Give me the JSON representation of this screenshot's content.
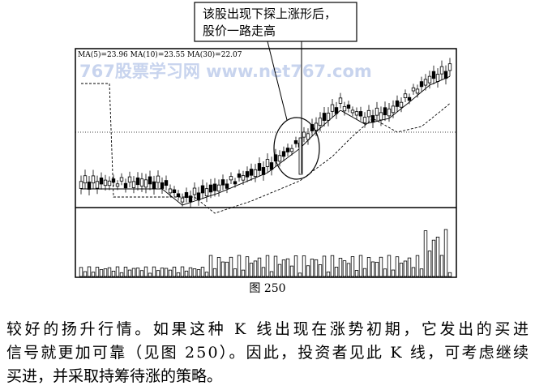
{
  "callout": {
    "lines": [
      "该股出现下探上涨形后，",
      "股价一路走高"
    ]
  },
  "chart": {
    "indicator_legend": "MA(5)=23.96  MA(10)=23.55  MA(30)=22.07",
    "watermark": "767股票学习网  www.net767.com"
  },
  "caption": "图 250",
  "paragraph": {
    "lines": [
      "较好的扬升行情。如果这种 K 线出现在涨势初期，它发出的买进",
      "信号就更加可靠（见图 250）。因此，投资者见此 K 线，可考虑继续",
      "买进，并采取持筹待涨的策略。"
    ]
  }
}
